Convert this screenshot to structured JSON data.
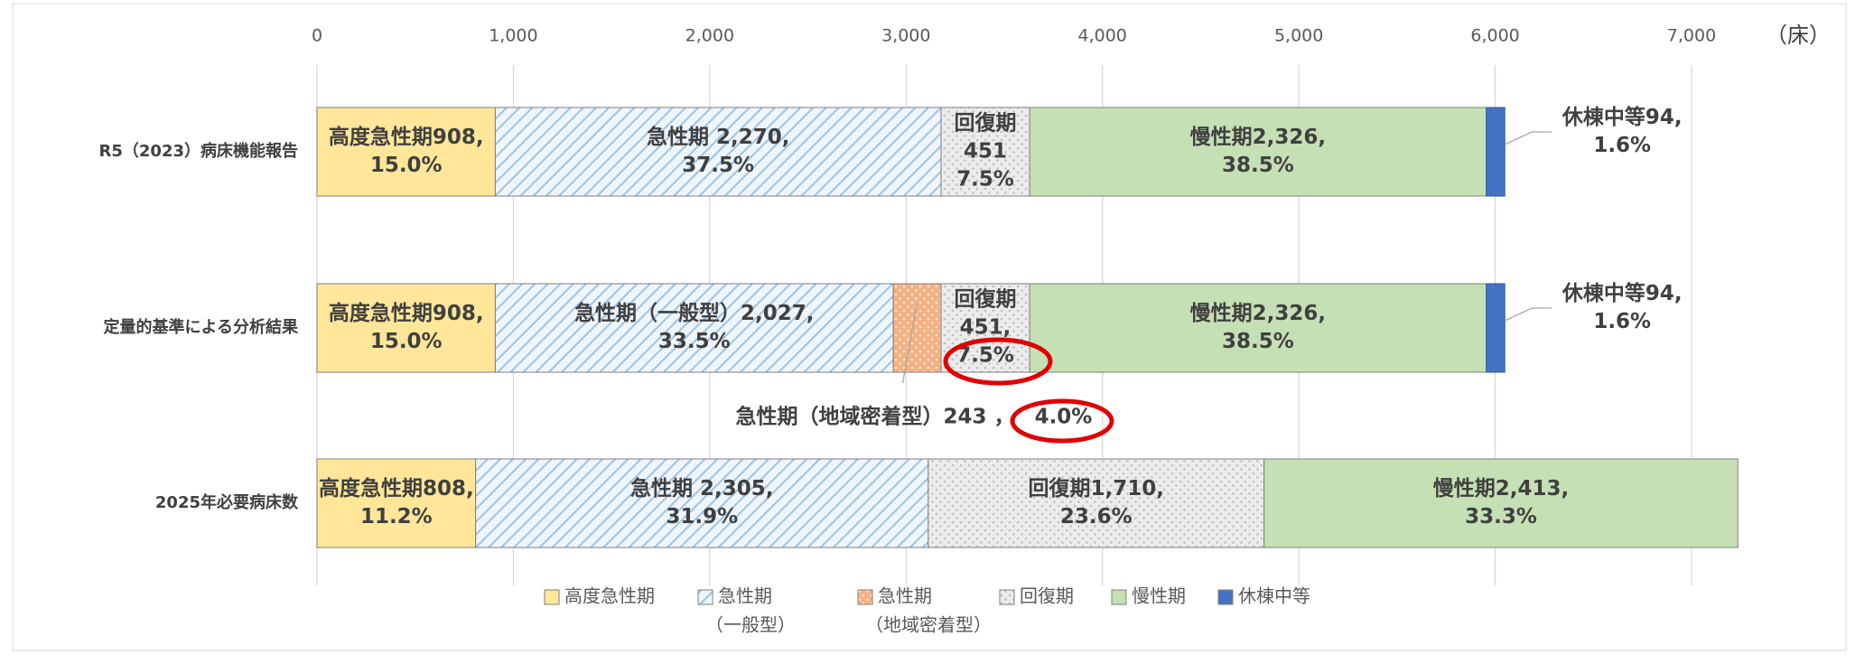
{
  "chart_data": {
    "type": "stacked_barh",
    "x_unit": "（床）",
    "categories": [
      "R5（2023）病床機能報告",
      "定量的基準による分析結果",
      "2025年必要病床数"
    ],
    "xlim": [
      0,
      7000
    ],
    "xticks": [
      0,
      {
        "value": 1000,
        "label": "1,000"
      },
      {
        "value": 2000,
        "label": "2,000"
      },
      {
        "value": 3000,
        "label": "3,000"
      },
      {
        "value": 4000,
        "label": "4,000"
      },
      {
        "value": 5000,
        "label": "5,000"
      },
      {
        "value": 6000,
        "label": "6,000"
      },
      {
        "value": 7000,
        "label": "7,000"
      }
    ],
    "grid": true,
    "legend": "bottom",
    "series": [
      {
        "name": [
          "高度急性期"
        ],
        "color": "#ffe699",
        "values": [
          908,
          908,
          808
        ],
        "value_labels": [
          [
            "高度急性期908,",
            "15.0%"
          ],
          [
            "高度急性期908,",
            "15.0%"
          ],
          [
            "高度急性期808,",
            "11.2%"
          ]
        ]
      },
      {
        "name": [
          "急性期",
          "（一般型）"
        ],
        "color": "#9dc3e6",
        "values": [
          2270,
          2027,
          2305
        ],
        "value_labels": [
          [
            "急性期 2,270,",
            "37.5%"
          ],
          [
            "急性期（一般型）2,027,",
            "33.5%"
          ],
          [
            "急性期 2,305,",
            "31.9%"
          ]
        ]
      },
      {
        "name": [
          "急性期",
          "（地域密着型）"
        ],
        "color": "#f4b183",
        "values": [
          null,
          243,
          null
        ],
        "value_labels": [
          null,
          [
            "急性期（地域密着型）243 ，",
            "4.0%"
          ],
          null
        ]
      },
      {
        "name": [
          "回復期"
        ],
        "color": "#d9d9d9",
        "values": [
          451,
          451,
          1710
        ],
        "value_labels": [
          [
            "回復期",
            "451",
            "7.5%"
          ],
          [
            "回復期",
            "451,",
            "7.5%"
          ],
          [
            "回復期1,710,",
            "23.6%"
          ]
        ]
      },
      {
        "name": [
          "慢性期"
        ],
        "color": "#c5e0b4",
        "values": [
          2326,
          2326,
          2413
        ],
        "value_labels": [
          [
            "慢性期2,326,",
            "38.5%"
          ],
          [
            "慢性期2,326,",
            "38.5%"
          ],
          [
            "慢性期2,413,",
            "33.3%"
          ]
        ]
      },
      {
        "name": [
          "休棟中等"
        ],
        "color": "#4472c4",
        "values": [
          94,
          94,
          null
        ],
        "value_labels": [
          [
            "休棟中等94,",
            "1.6%"
          ],
          [
            "休棟中等94,",
            "1.6%"
          ],
          null
        ]
      }
    ]
  }
}
